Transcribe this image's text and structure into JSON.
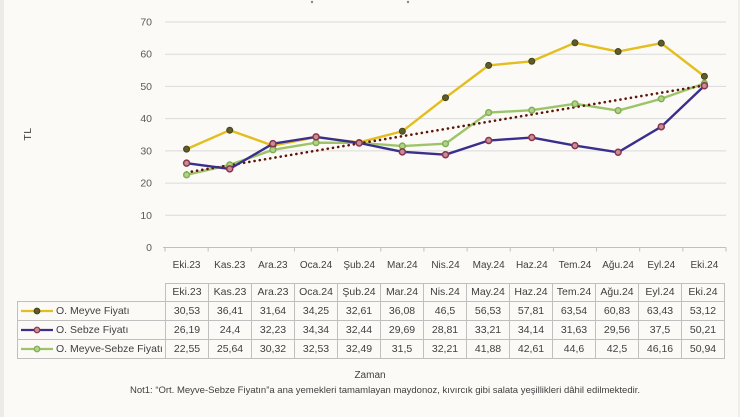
{
  "chart_data": {
    "type": "line",
    "title": "",
    "xlabel": "Zaman",
    "ylabel": "TL",
    "ylim": [
      0,
      70
    ],
    "y_tick_step": 10,
    "y_ticks": [
      0,
      10,
      20,
      30,
      40,
      50,
      60,
      70
    ],
    "grid": true,
    "legend_position": "table-left",
    "categories": [
      "Eki.23",
      "Kas.23",
      "Ara.23",
      "Oca.24",
      "Şub.24",
      "Mar.24",
      "Nis.24",
      "May.24",
      "Haz.24",
      "Tem.24",
      "Ağu.24",
      "Eyl.24",
      "Eki.24"
    ],
    "series": [
      {
        "name": "O. Meyve Fiyatı",
        "color": "#E3BE1E",
        "marker_fill": "#5E5C28",
        "marker_stroke": "#45441C",
        "values": [
          30.53,
          36.41,
          31.64,
          34.25,
          32.61,
          36.08,
          46.5,
          56.53,
          57.81,
          63.54,
          60.83,
          63.43,
          53.12
        ]
      },
      {
        "name": "O. Sebze Fiyatı",
        "color": "#3A2F8C",
        "marker_fill": "#C28F9B",
        "marker_stroke": "#8E3348",
        "values": [
          26.19,
          24.4,
          32.23,
          34.34,
          32.44,
          29.69,
          28.81,
          33.21,
          34.14,
          31.63,
          29.56,
          37.5,
          50.21
        ]
      },
      {
        "name": "O. Meyve-Sebze Fiyatı",
        "color": "#9DC469",
        "marker_fill": "#B2D289",
        "marker_stroke": "#7EAD51",
        "values": [
          22.55,
          25.64,
          30.32,
          32.53,
          32.49,
          31.5,
          32.21,
          41.88,
          42.61,
          44.6,
          42.5,
          46.16,
          50.94
        ]
      }
    ],
    "trendline": {
      "description": "dotted linear trend of O. Meyve-Sebze Fiyatı",
      "start_value": 23.3,
      "end_value": 50.3,
      "color": "#5E1408",
      "style": "dotted"
    }
  },
  "table": {
    "header": [
      "Eki.23",
      "Kas.23",
      "Ara.23",
      "Oca.24",
      "Şub.24",
      "Mar.24",
      "Nis.24",
      "May.24",
      "Haz.24",
      "Tem.24",
      "Ağu.24",
      "Eyl.24",
      "Eki.24"
    ],
    "rows": [
      {
        "label": "O. Meyve Fiyatı",
        "values": [
          "30,53",
          "36,41",
          "31,64",
          "34,25",
          "32,61",
          "36,08",
          "46,5",
          "56,53",
          "57,81",
          "63,54",
          "60,83",
          "63,43",
          "53,12"
        ]
      },
      {
        "label": "O. Sebze  Fiyatı",
        "values": [
          "26,19",
          "24,4",
          "32,23",
          "34,34",
          "32,44",
          "29,69",
          "28,81",
          "33,21",
          "34,14",
          "31,63",
          "29,56",
          "37,5",
          "50,21"
        ]
      },
      {
        "label": "O. Meyve-Sebze Fiyatı",
        "values": [
          "22,55",
          "25,64",
          "30,32",
          "32,53",
          "32,49",
          "31,5",
          "32,21",
          "41,88",
          "42,61",
          "44,6",
          "42,5",
          "46,16",
          "50,94"
        ]
      }
    ]
  },
  "footer": {
    "x_axis_title": "Zaman",
    "note": "Not1: “Ort. Meyve-Sebze Fiyatın”a ana yemekleri tamamlayan maydonoz, kıvırcık gibi salata yeşillikleri dâhil edilmektedir."
  },
  "colors": {
    "gridline": "#DADADA",
    "axis_line": "#BFBFBF",
    "tick_label": "#595959",
    "table_border": "#BFBFBF",
    "text": "#404040",
    "background": "#FBFAF7"
  }
}
